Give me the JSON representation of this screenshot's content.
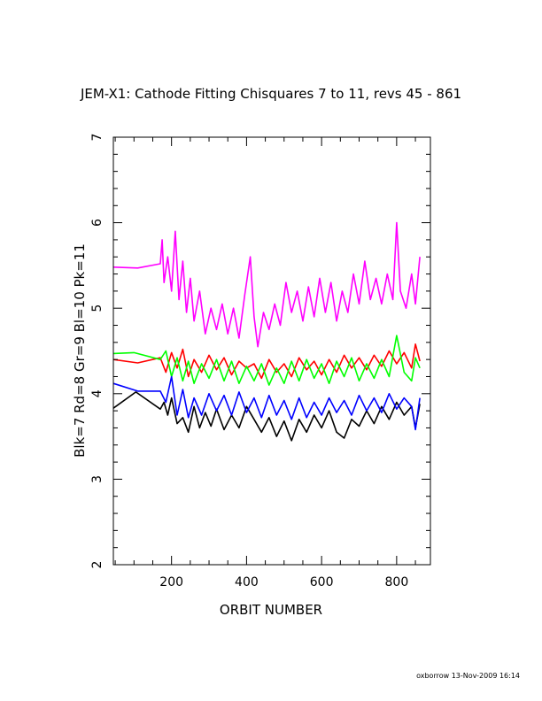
{
  "chart_data": {
    "type": "line",
    "title": "JEM-X1: Cathode Fitting Chisquares 7 to 11, revs 45 - 861",
    "xlabel": "ORBIT NUMBER",
    "ylabel": "Blk=7 Rd=8 Gr=9 Bl=10 Pk=11",
    "xlim": [
      45,
      890
    ],
    "ylim": [
      2,
      7
    ],
    "x_ticks": [
      200,
      400,
      600,
      800
    ],
    "y_ticks": [
      2,
      3,
      4,
      5,
      6,
      7
    ],
    "grid": false,
    "legend": "none",
    "series": [
      {
        "name": "Blk=7",
        "color": "#000000",
        "points": [
          [
            45,
            3.83
          ],
          [
            105,
            4.02
          ],
          [
            170,
            3.82
          ],
          [
            180,
            3.9
          ],
          [
            190,
            3.75
          ],
          [
            200,
            3.95
          ],
          [
            215,
            3.65
          ],
          [
            230,
            3.72
          ],
          [
            245,
            3.55
          ],
          [
            260,
            3.85
          ],
          [
            275,
            3.6
          ],
          [
            290,
            3.78
          ],
          [
            305,
            3.62
          ],
          [
            320,
            3.82
          ],
          [
            340,
            3.58
          ],
          [
            360,
            3.75
          ],
          [
            380,
            3.6
          ],
          [
            400,
            3.85
          ],
          [
            420,
            3.7
          ],
          [
            440,
            3.55
          ],
          [
            460,
            3.72
          ],
          [
            480,
            3.5
          ],
          [
            500,
            3.68
          ],
          [
            520,
            3.45
          ],
          [
            540,
            3.7
          ],
          [
            560,
            3.55
          ],
          [
            580,
            3.75
          ],
          [
            600,
            3.6
          ],
          [
            620,
            3.8
          ],
          [
            640,
            3.55
          ],
          [
            660,
            3.48
          ],
          [
            680,
            3.7
          ],
          [
            700,
            3.62
          ],
          [
            720,
            3.8
          ],
          [
            740,
            3.65
          ],
          [
            760,
            3.85
          ],
          [
            780,
            3.7
          ],
          [
            800,
            3.9
          ],
          [
            820,
            3.75
          ],
          [
            840,
            3.85
          ],
          [
            850,
            3.6
          ],
          [
            862,
            3.88
          ]
        ]
      },
      {
        "name": "Rd=8",
        "color": "#ff0000",
        "points": [
          [
            45,
            4.4
          ],
          [
            110,
            4.36
          ],
          [
            170,
            4.42
          ],
          [
            185,
            4.25
          ],
          [
            200,
            4.48
          ],
          [
            215,
            4.3
          ],
          [
            230,
            4.52
          ],
          [
            245,
            4.2
          ],
          [
            260,
            4.4
          ],
          [
            280,
            4.25
          ],
          [
            300,
            4.45
          ],
          [
            320,
            4.28
          ],
          [
            340,
            4.42
          ],
          [
            360,
            4.22
          ],
          [
            380,
            4.38
          ],
          [
            400,
            4.3
          ],
          [
            420,
            4.35
          ],
          [
            440,
            4.18
          ],
          [
            460,
            4.4
          ],
          [
            480,
            4.25
          ],
          [
            500,
            4.35
          ],
          [
            520,
            4.2
          ],
          [
            540,
            4.42
          ],
          [
            560,
            4.28
          ],
          [
            580,
            4.38
          ],
          [
            600,
            4.22
          ],
          [
            620,
            4.4
          ],
          [
            640,
            4.25
          ],
          [
            660,
            4.45
          ],
          [
            680,
            4.3
          ],
          [
            700,
            4.42
          ],
          [
            720,
            4.28
          ],
          [
            740,
            4.45
          ],
          [
            760,
            4.32
          ],
          [
            780,
            4.5
          ],
          [
            800,
            4.35
          ],
          [
            820,
            4.48
          ],
          [
            840,
            4.3
          ],
          [
            850,
            4.58
          ],
          [
            862,
            4.38
          ]
        ]
      },
      {
        "name": "Gr=9",
        "color": "#00ff00",
        "points": [
          [
            45,
            4.47
          ],
          [
            100,
            4.48
          ],
          [
            170,
            4.4
          ],
          [
            185,
            4.5
          ],
          [
            200,
            4.2
          ],
          [
            215,
            4.42
          ],
          [
            230,
            4.15
          ],
          [
            245,
            4.38
          ],
          [
            260,
            4.12
          ],
          [
            280,
            4.35
          ],
          [
            300,
            4.18
          ],
          [
            320,
            4.4
          ],
          [
            340,
            4.15
          ],
          [
            360,
            4.38
          ],
          [
            380,
            4.12
          ],
          [
            400,
            4.32
          ],
          [
            420,
            4.15
          ],
          [
            440,
            4.35
          ],
          [
            460,
            4.1
          ],
          [
            480,
            4.3
          ],
          [
            500,
            4.12
          ],
          [
            520,
            4.38
          ],
          [
            540,
            4.15
          ],
          [
            560,
            4.4
          ],
          [
            580,
            4.18
          ],
          [
            600,
            4.35
          ],
          [
            620,
            4.12
          ],
          [
            640,
            4.38
          ],
          [
            660,
            4.2
          ],
          [
            680,
            4.42
          ],
          [
            700,
            4.15
          ],
          [
            720,
            4.35
          ],
          [
            740,
            4.18
          ],
          [
            760,
            4.4
          ],
          [
            780,
            4.2
          ],
          [
            800,
            4.68
          ],
          [
            820,
            4.25
          ],
          [
            840,
            4.15
          ],
          [
            850,
            4.42
          ],
          [
            862,
            4.3
          ]
        ]
      },
      {
        "name": "Bl=10",
        "color": "#0000ff",
        "points": [
          [
            45,
            4.12
          ],
          [
            110,
            4.03
          ],
          [
            170,
            4.03
          ],
          [
            185,
            3.9
          ],
          [
            200,
            4.2
          ],
          [
            215,
            3.75
          ],
          [
            230,
            4.05
          ],
          [
            245,
            3.72
          ],
          [
            260,
            3.95
          ],
          [
            280,
            3.75
          ],
          [
            300,
            4.0
          ],
          [
            320,
            3.8
          ],
          [
            340,
            3.98
          ],
          [
            360,
            3.75
          ],
          [
            380,
            4.02
          ],
          [
            400,
            3.78
          ],
          [
            420,
            3.95
          ],
          [
            440,
            3.72
          ],
          [
            460,
            3.98
          ],
          [
            480,
            3.75
          ],
          [
            500,
            3.92
          ],
          [
            520,
            3.7
          ],
          [
            540,
            3.95
          ],
          [
            560,
            3.72
          ],
          [
            580,
            3.9
          ],
          [
            600,
            3.75
          ],
          [
            620,
            3.95
          ],
          [
            640,
            3.78
          ],
          [
            660,
            3.92
          ],
          [
            680,
            3.75
          ],
          [
            700,
            3.98
          ],
          [
            720,
            3.8
          ],
          [
            740,
            3.95
          ],
          [
            760,
            3.78
          ],
          [
            780,
            4.0
          ],
          [
            800,
            3.82
          ],
          [
            820,
            3.95
          ],
          [
            840,
            3.85
          ],
          [
            850,
            3.58
          ],
          [
            862,
            3.95
          ]
        ]
      },
      {
        "name": "Pk=11",
        "color": "#ff00ff",
        "points": [
          [
            45,
            5.48
          ],
          [
            110,
            5.47
          ],
          [
            170,
            5.52
          ],
          [
            175,
            5.8
          ],
          [
            180,
            5.3
          ],
          [
            190,
            5.6
          ],
          [
            200,
            5.2
          ],
          [
            210,
            5.9
          ],
          [
            220,
            5.1
          ],
          [
            230,
            5.55
          ],
          [
            240,
            4.95
          ],
          [
            250,
            5.35
          ],
          [
            260,
            4.85
          ],
          [
            275,
            5.2
          ],
          [
            290,
            4.7
          ],
          [
            305,
            5.0
          ],
          [
            320,
            4.75
          ],
          [
            335,
            5.05
          ],
          [
            350,
            4.7
          ],
          [
            365,
            5.0
          ],
          [
            380,
            4.65
          ],
          [
            395,
            5.15
          ],
          [
            410,
            5.6
          ],
          [
            420,
            4.9
          ],
          [
            430,
            4.55
          ],
          [
            445,
            4.95
          ],
          [
            460,
            4.75
          ],
          [
            475,
            5.05
          ],
          [
            490,
            4.8
          ],
          [
            505,
            5.3
          ],
          [
            520,
            4.95
          ],
          [
            535,
            5.2
          ],
          [
            550,
            4.85
          ],
          [
            565,
            5.25
          ],
          [
            580,
            4.9
          ],
          [
            595,
            5.35
          ],
          [
            610,
            4.95
          ],
          [
            625,
            5.3
          ],
          [
            640,
            4.85
          ],
          [
            655,
            5.2
          ],
          [
            670,
            4.95
          ],
          [
            685,
            5.4
          ],
          [
            700,
            5.05
          ],
          [
            715,
            5.55
          ],
          [
            730,
            5.1
          ],
          [
            745,
            5.35
          ],
          [
            760,
            5.05
          ],
          [
            775,
            5.4
          ],
          [
            790,
            5.1
          ],
          [
            800,
            6.0
          ],
          [
            810,
            5.2
          ],
          [
            825,
            5.0
          ],
          [
            840,
            5.4
          ],
          [
            850,
            5.05
          ],
          [
            862,
            5.6
          ]
        ]
      }
    ]
  },
  "footer": "oxborrow 13-Nov-2009 16:14"
}
